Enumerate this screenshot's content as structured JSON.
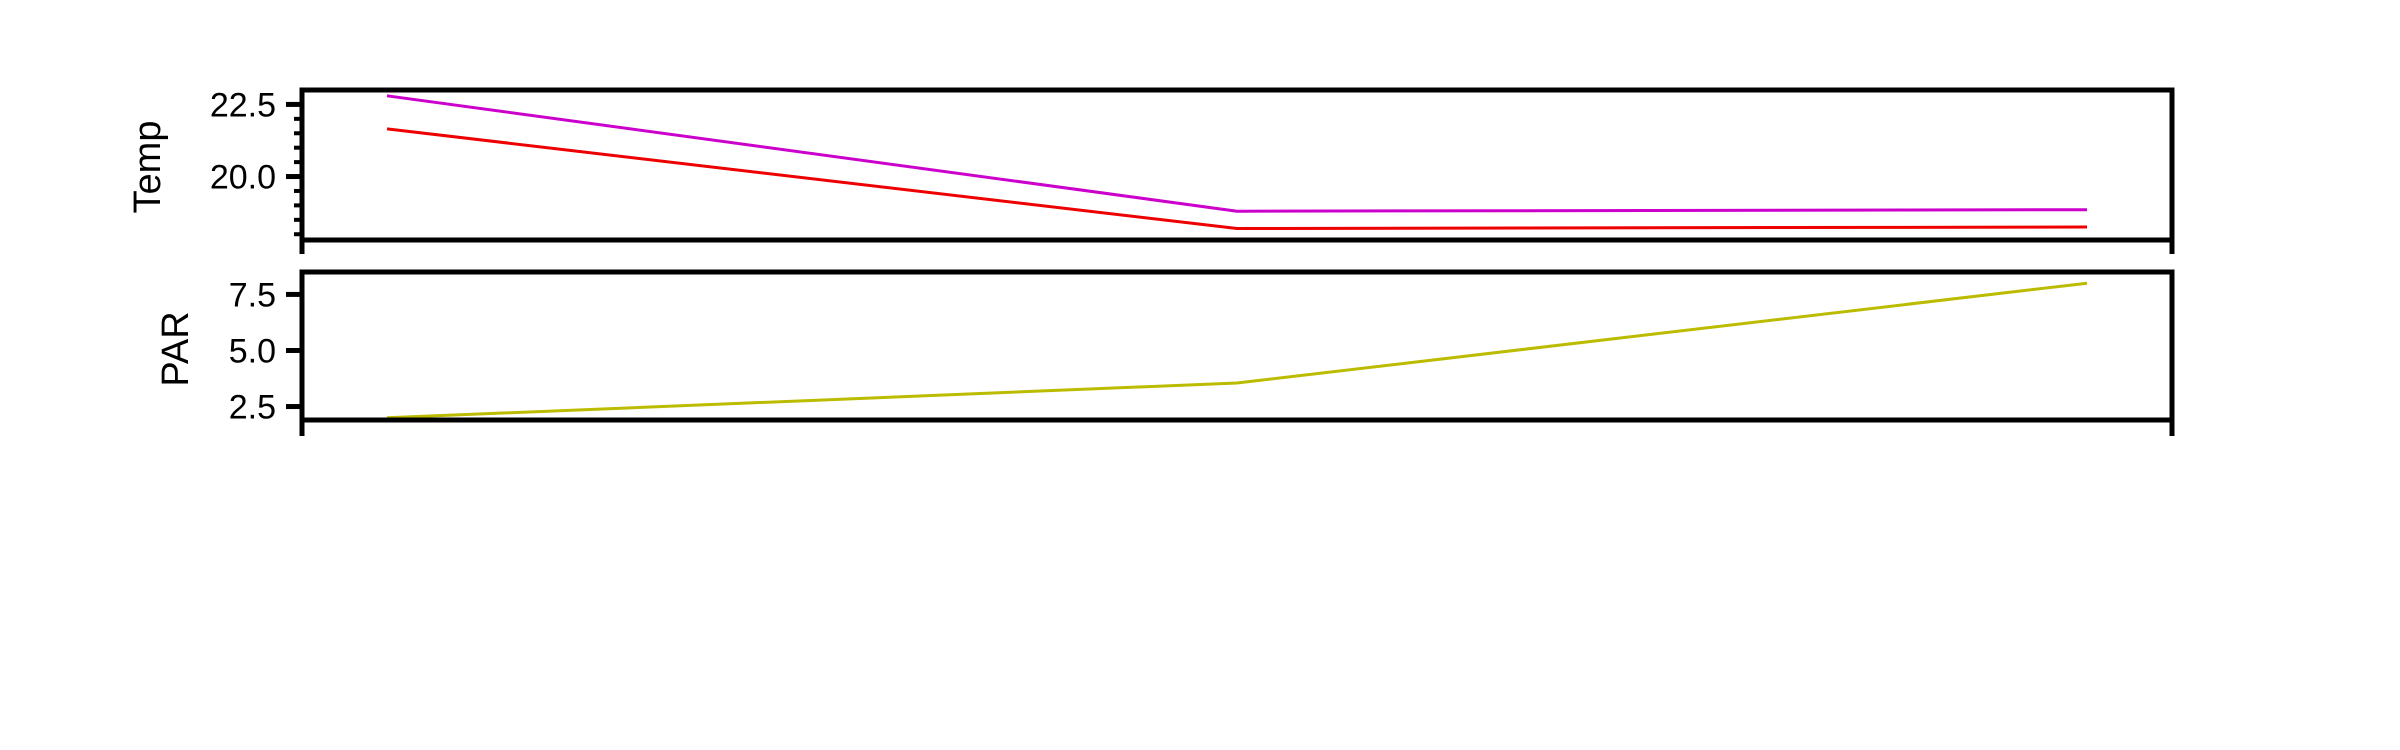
{
  "chart_data": [
    {
      "type": "line",
      "ylabel": "Temp",
      "x": [
        0,
        1,
        2
      ],
      "xlim": [
        -0.1,
        2.1
      ],
      "ylim": [
        17.8,
        23.0
      ],
      "yticks": [
        20.0,
        22.5
      ],
      "ytick_labels": [
        "20.0",
        "22.5"
      ],
      "series": [
        {
          "color": "#cc00cc",
          "values": [
            22.8,
            18.8,
            18.85
          ]
        },
        {
          "color": "#ee0000",
          "values": [
            21.65,
            18.2,
            18.25
          ]
        }
      ],
      "grid": false
    },
    {
      "type": "line",
      "ylabel": "PAR",
      "x": [
        0,
        1,
        2
      ],
      "xlim": [
        -0.1,
        2.1
      ],
      "ylim": [
        1.9,
        8.5
      ],
      "yticks": [
        2.5,
        5.0,
        7.5
      ],
      "ytick_labels": [
        "2.5",
        "5.0",
        "7.5"
      ],
      "series": [
        {
          "color": "#bbbb00",
          "values": [
            2.0,
            3.55,
            8.0
          ]
        }
      ],
      "grid": false
    }
  ]
}
